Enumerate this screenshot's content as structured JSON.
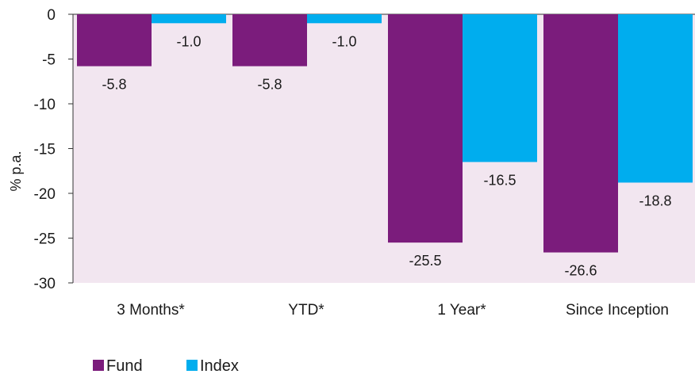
{
  "chart_data": {
    "type": "bar",
    "categories": [
      "3 Months*",
      "YTD*",
      "1 Year*",
      "Since Inception"
    ],
    "series": [
      {
        "name": "Fund",
        "values": [
          -5.8,
          -5.8,
          -25.5,
          -26.6
        ],
        "color": "#7b1c7c"
      },
      {
        "name": "Index",
        "values": [
          -1.0,
          -1.0,
          -16.5,
          -18.8
        ],
        "color": "#00adee"
      }
    ],
    "data_labels": [
      [
        "-5.8",
        "-5.8",
        "-25.5",
        "-26.6"
      ],
      [
        "-1.0",
        "-1.0",
        "-16.5",
        "-18.8"
      ]
    ],
    "ylabel": "% p.a.",
    "ylim": [
      -30,
      0
    ],
    "yticks": [
      0,
      -5,
      -10,
      -15,
      -20,
      -25,
      -30
    ],
    "plot_background": "#f2e6f0",
    "grid": false,
    "legend_position": "bottom-left"
  }
}
